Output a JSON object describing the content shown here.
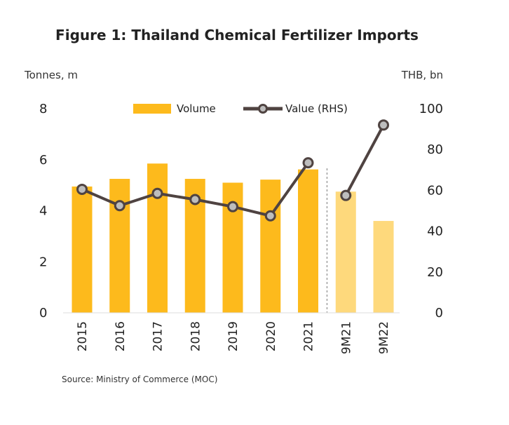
{
  "chart_data": {
    "type": "bar",
    "title": "Figure 1: Thailand Chemical Fertilizer Imports",
    "ylabel_left": "Tonnes, m",
    "ylabel_right": "THB, bn",
    "categories": [
      "2015",
      "2016",
      "2017",
      "2018",
      "2019",
      "2020",
      "2021",
      "9M21",
      "9M22"
    ],
    "ylim_left": [
      0,
      8
    ],
    "ylim_right": [
      0,
      100
    ],
    "yticks_left": [
      "0",
      "2",
      "4",
      "6",
      "8"
    ],
    "yticks_right": [
      "0",
      "20",
      "40",
      "60",
      "80",
      "100"
    ],
    "series": [
      {
        "name": "Volume",
        "type": "bar",
        "axis": "left",
        "values": [
          4.95,
          5.25,
          5.85,
          5.25,
          5.1,
          5.22,
          5.62,
          4.75,
          3.6
        ],
        "colors": [
          "#FDBA1C",
          "#FDBA1C",
          "#FDBA1C",
          "#FDBA1C",
          "#FDBA1C",
          "#FDBA1C",
          "#FDBA1C",
          "#FED97C",
          "#FED97C"
        ]
      },
      {
        "name": "Value (RHS)",
        "type": "line",
        "axis": "right",
        "color": "#4F4341",
        "segments": [
          {
            "indices": [
              0,
              1,
              2,
              3,
              4,
              5,
              6
            ],
            "values": [
              60.5,
              52.5,
              58.5,
              55.5,
              52,
              47.5,
              73.5
            ]
          },
          {
            "indices": [
              7,
              8
            ],
            "values": [
              57.5,
              92
            ]
          }
        ]
      }
    ],
    "divider_after_category": "2021",
    "legend_placement": "top-center",
    "grid": false
  },
  "source": "Source: Ministry of Commerce (MOC)"
}
